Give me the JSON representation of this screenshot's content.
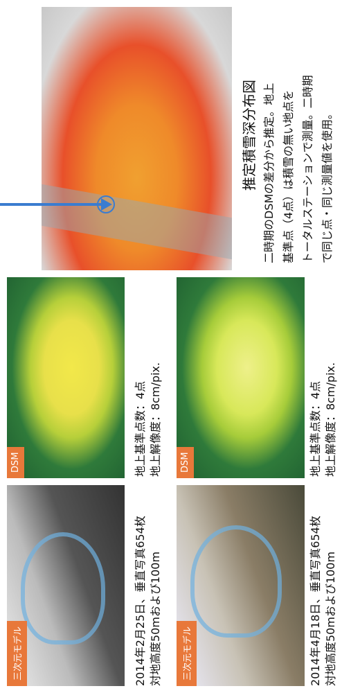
{
  "panels": [
    {
      "tag": "三次元モデル",
      "caption": [
        "2014年2月25日、垂直写真654枚",
        "対地高度50mおよび100m"
      ]
    },
    {
      "tag": "三次元モデル",
      "caption": [
        "2014年4月18日、垂直写真654枚",
        "対地高度50mおよび100m"
      ]
    }
  ],
  "dsm": [
    {
      "tag": "DSM",
      "caption": [
        "地上基準点数：4点",
        "地上解像度：8cm/pix."
      ]
    },
    {
      "tag": "DSM",
      "caption": [
        "地上基準点数：4点",
        "地上解像度：8cm/pix."
      ]
    }
  ],
  "map": {
    "title": "推定積雪深分布図",
    "text": [
      "二時期のDSMの差分から推定。地上",
      "基準点（4点）は積雪の無い地点を",
      "トータルステーションで測量。二時期",
      "で同じ点・同じ測量値を使用。"
    ]
  }
}
